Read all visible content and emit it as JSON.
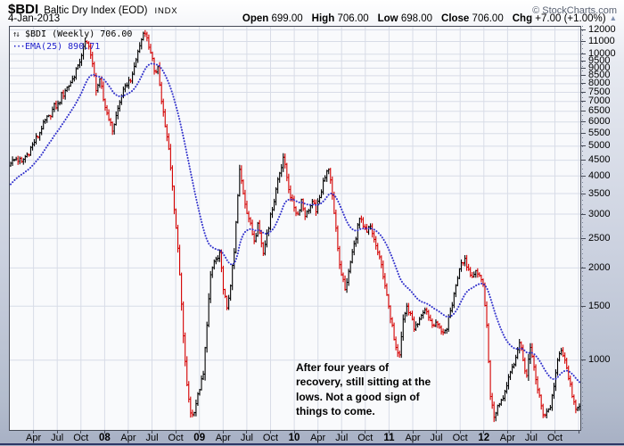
{
  "header": {
    "symbol": "$BDI",
    "title": "Baltic Dry Index (EOD)",
    "exchange": "INDX",
    "copyright": "© StockCharts.com",
    "date": "4-Jan-2013",
    "quote": {
      "open_label": "Open",
      "open": "699.00",
      "high_label": "High",
      "high": "706.00",
      "low_label": "Low",
      "low": "698.00",
      "close_label": "Close",
      "close": "706.00",
      "chg_label": "Chg",
      "chg": "+7.00 (+1.00%)",
      "arrow": "▲"
    }
  },
  "legend": {
    "price_icon": "↑↓",
    "price": "$BDI (Weekly) 706.00",
    "ema_icon": "···",
    "ema": "EMA(25) 890.71"
  },
  "annotation": {
    "lines": [
      "After four years of",
      "recovery, still sitting at the",
      "lows. Not a good sign of",
      "things to come."
    ]
  },
  "chart_data": {
    "type": "candlestick",
    "symbol": "$BDI",
    "timeframe": "weekly",
    "x_start": "Jan 2007",
    "x_end": "Jan 2013",
    "weeks_total": 314,
    "y_scale": "log",
    "y_range_plotted": [
      591,
      12300
    ],
    "y_ticks": [
      12000,
      11000,
      10000,
      9500,
      9000,
      8500,
      8000,
      7500,
      7000,
      6500,
      6000,
      5500,
      5000,
      4500,
      4000,
      3500,
      3000,
      2500,
      2000,
      1500,
      1000
    ],
    "x_ticks": [
      {
        "m": 3,
        "label": "Apr"
      },
      {
        "m": 6,
        "label": "Jul"
      },
      {
        "m": 9,
        "label": "Oct"
      },
      {
        "m": 12,
        "label": "08",
        "year": true
      },
      {
        "m": 15,
        "label": "Apr"
      },
      {
        "m": 18,
        "label": "Jul"
      },
      {
        "m": 21,
        "label": "Oct"
      },
      {
        "m": 24,
        "label": "09",
        "year": true
      },
      {
        "m": 27,
        "label": "Apr"
      },
      {
        "m": 30,
        "label": "Jul"
      },
      {
        "m": 33,
        "label": "Oct"
      },
      {
        "m": 36,
        "label": "10",
        "year": true
      },
      {
        "m": 39,
        "label": "Apr"
      },
      {
        "m": 42,
        "label": "Jul"
      },
      {
        "m": 45,
        "label": "Oct"
      },
      {
        "m": 48,
        "label": "11",
        "year": true
      },
      {
        "m": 51,
        "label": "Apr"
      },
      {
        "m": 54,
        "label": "Jul"
      },
      {
        "m": 57,
        "label": "Oct"
      },
      {
        "m": 60,
        "label": "12",
        "year": true
      },
      {
        "m": 63,
        "label": "Apr"
      },
      {
        "m": 66,
        "label": "Jul"
      },
      {
        "m": 69,
        "label": "Oct"
      }
    ],
    "grid_months": [
      3,
      6,
      9,
      12,
      15,
      18,
      21,
      24,
      27,
      30,
      33,
      36,
      39,
      42,
      45,
      48,
      51,
      54,
      57,
      60,
      63,
      66,
      69,
      72
    ],
    "ema_period": 25,
    "ema_seed": 3700,
    "ema_last": 890.71,
    "last_close": 706.0,
    "open": 699.0,
    "high": 706.0,
    "low": 698.0,
    "close": 706.0,
    "chg": 7.0,
    "close_anchors": [
      [
        0,
        4400
      ],
      [
        3,
        4550
      ],
      [
        6,
        4450
      ],
      [
        9,
        4700
      ],
      [
        13,
        5150
      ],
      [
        17,
        5700
      ],
      [
        21,
        6300
      ],
      [
        26,
        6900
      ],
      [
        30,
        7600
      ],
      [
        34,
        8300
      ],
      [
        37,
        9200
      ],
      [
        39,
        9900
      ],
      [
        41,
        11000
      ],
      [
        43,
        10600
      ],
      [
        45,
        9300
      ],
      [
        47,
        7600
      ],
      [
        49,
        8300
      ],
      [
        51,
        7100
      ],
      [
        54,
        6100
      ],
      [
        56,
        5600
      ],
      [
        58,
        6300
      ],
      [
        61,
        7300
      ],
      [
        64,
        7900
      ],
      [
        67,
        8600
      ],
      [
        70,
        10200
      ],
      [
        73,
        11700
      ],
      [
        75,
        11300
      ],
      [
        77,
        10100
      ],
      [
        79,
        8800
      ],
      [
        81,
        9100
      ],
      [
        83,
        7000
      ],
      [
        85,
        5800
      ],
      [
        87,
        4900
      ],
      [
        89,
        3700
      ],
      [
        91,
        2700
      ],
      [
        93,
        1900
      ],
      [
        95,
        1200
      ],
      [
        97,
        830
      ],
      [
        99,
        672
      ],
      [
        100,
        663
      ],
      [
        102,
        720
      ],
      [
        104,
        800
      ],
      [
        106,
        900
      ],
      [
        108,
        1300
      ],
      [
        110,
        1900
      ],
      [
        112,
        2100
      ],
      [
        114,
        2150
      ],
      [
        115,
        2250
      ],
      [
        117,
        1700
      ],
      [
        119,
        1480
      ],
      [
        121,
        1750
      ],
      [
        123,
        2250
      ],
      [
        125,
        3450
      ],
      [
        126,
        4200
      ],
      [
        128,
        3500
      ],
      [
        131,
        2900
      ],
      [
        134,
        2450
      ],
      [
        136,
        2800
      ],
      [
        139,
        2230
      ],
      [
        141,
        2600
      ],
      [
        144,
        3100
      ],
      [
        147,
        3900
      ],
      [
        150,
        4600
      ],
      [
        152,
        3950
      ],
      [
        154,
        3400
      ],
      [
        156,
        3150
      ],
      [
        158,
        3000
      ],
      [
        160,
        3350
      ],
      [
        162,
        2950
      ],
      [
        164,
        3080
      ],
      [
        166,
        3300
      ],
      [
        168,
        3050
      ],
      [
        170,
        3400
      ],
      [
        172,
        3850
      ],
      [
        175,
        4200
      ],
      [
        177,
        3450
      ],
      [
        179,
        2700
      ],
      [
        181,
        2050
      ],
      [
        184,
        1700
      ],
      [
        186,
        1950
      ],
      [
        189,
        2400
      ],
      [
        192,
        2900
      ],
      [
        194,
        2730
      ],
      [
        196,
        2620
      ],
      [
        198,
        2740
      ],
      [
        200,
        2480
      ],
      [
        202,
        2250
      ],
      [
        204,
        2050
      ],
      [
        206,
        1750
      ],
      [
        208,
        1500
      ],
      [
        210,
        1300
      ],
      [
        212,
        1100
      ],
      [
        214,
        1040
      ],
      [
        216,
        1360
      ],
      [
        218,
        1500
      ],
      [
        220,
        1420
      ],
      [
        222,
        1260
      ],
      [
        224,
        1310
      ],
      [
        226,
        1400
      ],
      [
        228,
        1460
      ],
      [
        230,
        1380
      ],
      [
        232,
        1300
      ],
      [
        234,
        1330
      ],
      [
        236,
        1280
      ],
      [
        238,
        1230
      ],
      [
        240,
        1260
      ],
      [
        242,
        1450
      ],
      [
        244,
        1650
      ],
      [
        246,
        1850
      ],
      [
        248,
        2080
      ],
      [
        250,
        2150
      ],
      [
        252,
        1980
      ],
      [
        254,
        1870
      ],
      [
        256,
        1960
      ],
      [
        258,
        1890
      ],
      [
        260,
        1760
      ],
      [
        262,
        1300
      ],
      [
        264,
        760
      ],
      [
        266,
        650
      ],
      [
        268,
        710
      ],
      [
        270,
        740
      ],
      [
        272,
        790
      ],
      [
        274,
        880
      ],
      [
        276,
        950
      ],
      [
        278,
        1020
      ],
      [
        280,
        1140
      ],
      [
        282,
        1000
      ],
      [
        284,
        890
      ],
      [
        286,
        1100
      ],
      [
        288,
        950
      ],
      [
        290,
        800
      ],
      [
        293,
        662
      ],
      [
        295,
        680
      ],
      [
        297,
        700
      ],
      [
        299,
        820
      ],
      [
        301,
        1000
      ],
      [
        303,
        1075
      ],
      [
        305,
        1000
      ],
      [
        307,
        870
      ],
      [
        309,
        760
      ],
      [
        311,
        690
      ],
      [
        312,
        700
      ],
      [
        313,
        706
      ]
    ],
    "colors": {
      "up": "#000000",
      "down": "#d40000",
      "ema": "#3333cc",
      "grid": "#d8dce7",
      "plot_bg": "#f9fafc"
    }
  }
}
